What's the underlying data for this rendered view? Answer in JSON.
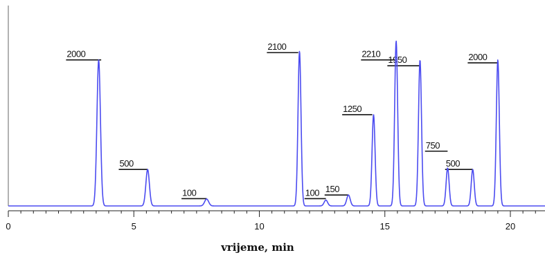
{
  "chart_data": {
    "type": "line",
    "xlabel": "vrijeme, min",
    "ylabel": "",
    "xlim": [
      0,
      21.5
    ],
    "ylim": [
      0,
      2300
    ],
    "grid": false,
    "line_color": "#4b4bf0",
    "x_ticks": [
      0,
      5,
      10,
      15,
      20
    ],
    "x_tick_labels": [
      "0",
      "5",
      "10",
      "15",
      "20"
    ],
    "peaks": [
      {
        "x": 3.6,
        "height": 2000,
        "width": 0.07,
        "label": "2000",
        "bar_start": 2.3,
        "bar_end": 3.7,
        "bar_y": 2000
      },
      {
        "x": 5.55,
        "height": 500,
        "width": 0.07,
        "label": "500",
        "bar_start": 4.4,
        "bar_end": 5.55,
        "bar_y": 500
      },
      {
        "x": 7.9,
        "height": 95,
        "width": 0.08,
        "label": "100",
        "bar_start": 6.9,
        "bar_end": 7.9,
        "bar_y": 100
      },
      {
        "x": 11.6,
        "height": 2120,
        "width": 0.06,
        "label": "2100",
        "bar_start": 10.3,
        "bar_end": 11.55,
        "bar_y": 2100
      },
      {
        "x": 12.65,
        "height": 80,
        "width": 0.07,
        "label": "100",
        "bar_start": 11.8,
        "bar_end": 12.65,
        "bar_y": 100
      },
      {
        "x": 13.55,
        "height": 150,
        "width": 0.07,
        "label": "150",
        "bar_start": 12.6,
        "bar_end": 13.55,
        "bar_y": 150
      },
      {
        "x": 14.55,
        "height": 1250,
        "width": 0.06,
        "label": "1250",
        "bar_start": 13.3,
        "bar_end": 14.5,
        "bar_y": 1250
      },
      {
        "x": 15.45,
        "height": 2260,
        "width": 0.06,
        "label": "2210",
        "bar_start": 14.05,
        "bar_end": 15.4,
        "bar_y": 2000
      },
      {
        "x": 16.4,
        "height": 2000,
        "width": 0.06,
        "label": "1950",
        "bar_start": 15.1,
        "bar_end": 16.4,
        "bar_y": 1920
      },
      {
        "x": 17.5,
        "height": 520,
        "width": 0.06,
        "label": "750",
        "bar_start": 16.6,
        "bar_end": 17.5,
        "bar_y": 750
      },
      {
        "x": 18.5,
        "height": 500,
        "width": 0.06,
        "label": "500",
        "bar_start": 17.4,
        "bar_end": 18.5,
        "bar_y": 500
      },
      {
        "x": 19.5,
        "height": 2000,
        "width": 0.06,
        "label": "2000",
        "bar_start": 18.3,
        "bar_end": 19.5,
        "bar_y": 1960
      }
    ]
  }
}
